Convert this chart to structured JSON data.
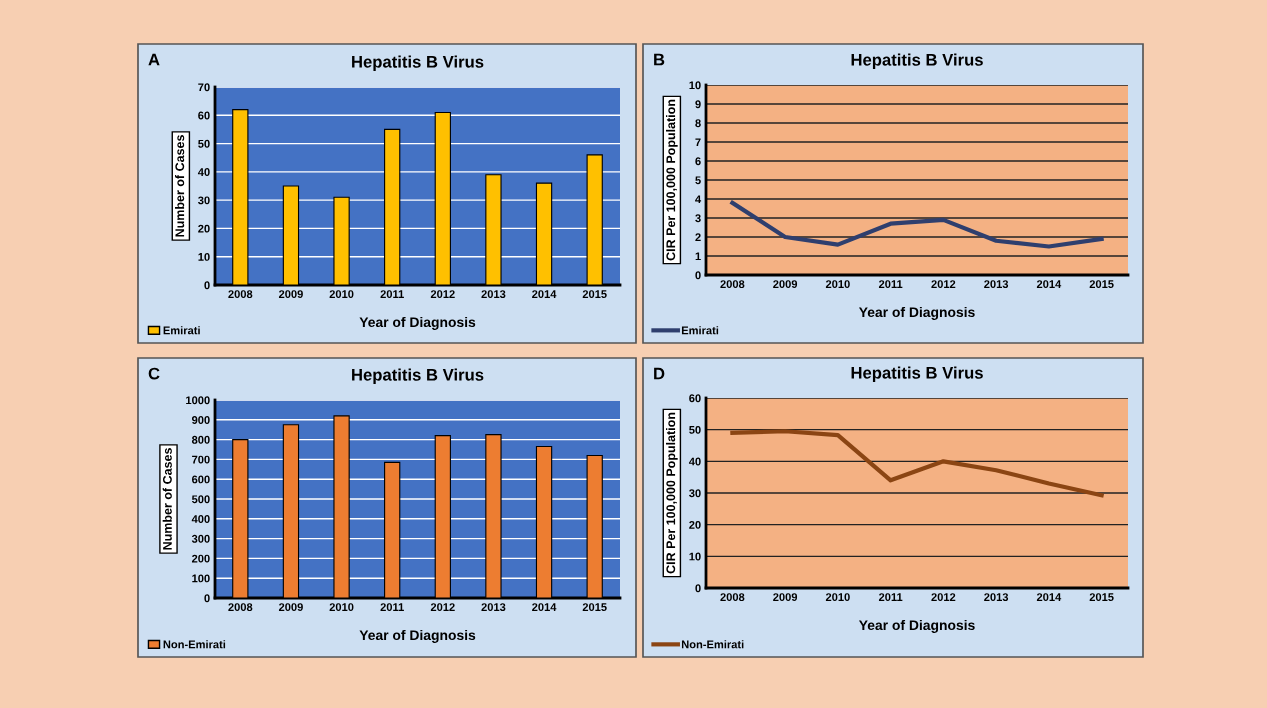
{
  "chart_data": [
    {
      "type": "bar",
      "title": "Hepatitis B Virus",
      "annotations": [
        "A"
      ],
      "xlabel": "Year of Diagnosis",
      "ylabel": "Number of Cases",
      "categories": [
        "2008",
        "2009",
        "2010",
        "2011",
        "2012",
        "2013",
        "2014",
        "2015"
      ],
      "series": [
        {
          "name": "Emirati",
          "color": "#ffc000",
          "values": [
            62,
            35,
            31,
            55,
            61,
            39,
            36,
            46
          ]
        }
      ],
      "ylim": [
        0,
        70
      ],
      "yticks": [
        0,
        10,
        20,
        30,
        40,
        50,
        60,
        70
      ],
      "grid": "y",
      "legend": "bottom left"
    },
    {
      "type": "line",
      "title": "Hepatitis B Virus",
      "annotations": [
        "B"
      ],
      "xlabel": "Year of Diagnosis",
      "ylabel": "CIR Per 100,000 Population",
      "categories": [
        "2008",
        "2009",
        "2010",
        "2011",
        "2012",
        "2013",
        "2014",
        "2015"
      ],
      "series": [
        {
          "name": "Emirati",
          "color": "#2f3f6e",
          "values": [
            3.8,
            2.0,
            1.6,
            2.7,
            2.9,
            1.8,
            1.5,
            1.9
          ]
        }
      ],
      "ylim": [
        0,
        10
      ],
      "yticks": [
        0,
        1,
        2,
        3,
        4,
        5,
        6,
        7,
        8,
        9,
        10
      ],
      "grid": "y",
      "legend": "bottom left"
    },
    {
      "type": "bar",
      "title": "Hepatitis B Virus",
      "annotations": [
        "C"
      ],
      "xlabel": "Year of Diagnosis",
      "ylabel": "Number of Cases",
      "categories": [
        "2008",
        "2009",
        "2010",
        "2011",
        "2012",
        "2013",
        "2014",
        "2015"
      ],
      "series": [
        {
          "name": "Non-Emirati",
          "color": "#ed7d31",
          "values": [
            800,
            875,
            920,
            685,
            820,
            825,
            765,
            720
          ]
        }
      ],
      "ylim": [
        0,
        1000
      ],
      "yticks": [
        0,
        100,
        200,
        300,
        400,
        500,
        600,
        700,
        800,
        900,
        1000
      ],
      "grid": "y",
      "legend": "bottom left"
    },
    {
      "type": "line",
      "title": "Hepatitis B Virus",
      "annotations": [
        "D"
      ],
      "xlabel": "Year of Diagnosis",
      "ylabel": "CIR Per 100,000 Population",
      "categories": [
        "2008",
        "2009",
        "2010",
        "2011",
        "2012",
        "2013",
        "2014",
        "2015"
      ],
      "series": [
        {
          "name": "Non-Emirati",
          "color": "#8b4513",
          "values": [
            49,
            49.5,
            48.3,
            34,
            40,
            37.2,
            33,
            29.3
          ]
        }
      ],
      "ylim": [
        0,
        60
      ],
      "yticks": [
        0,
        10,
        20,
        30,
        40,
        50,
        60
      ],
      "grid": "y",
      "legend": "bottom left"
    }
  ]
}
